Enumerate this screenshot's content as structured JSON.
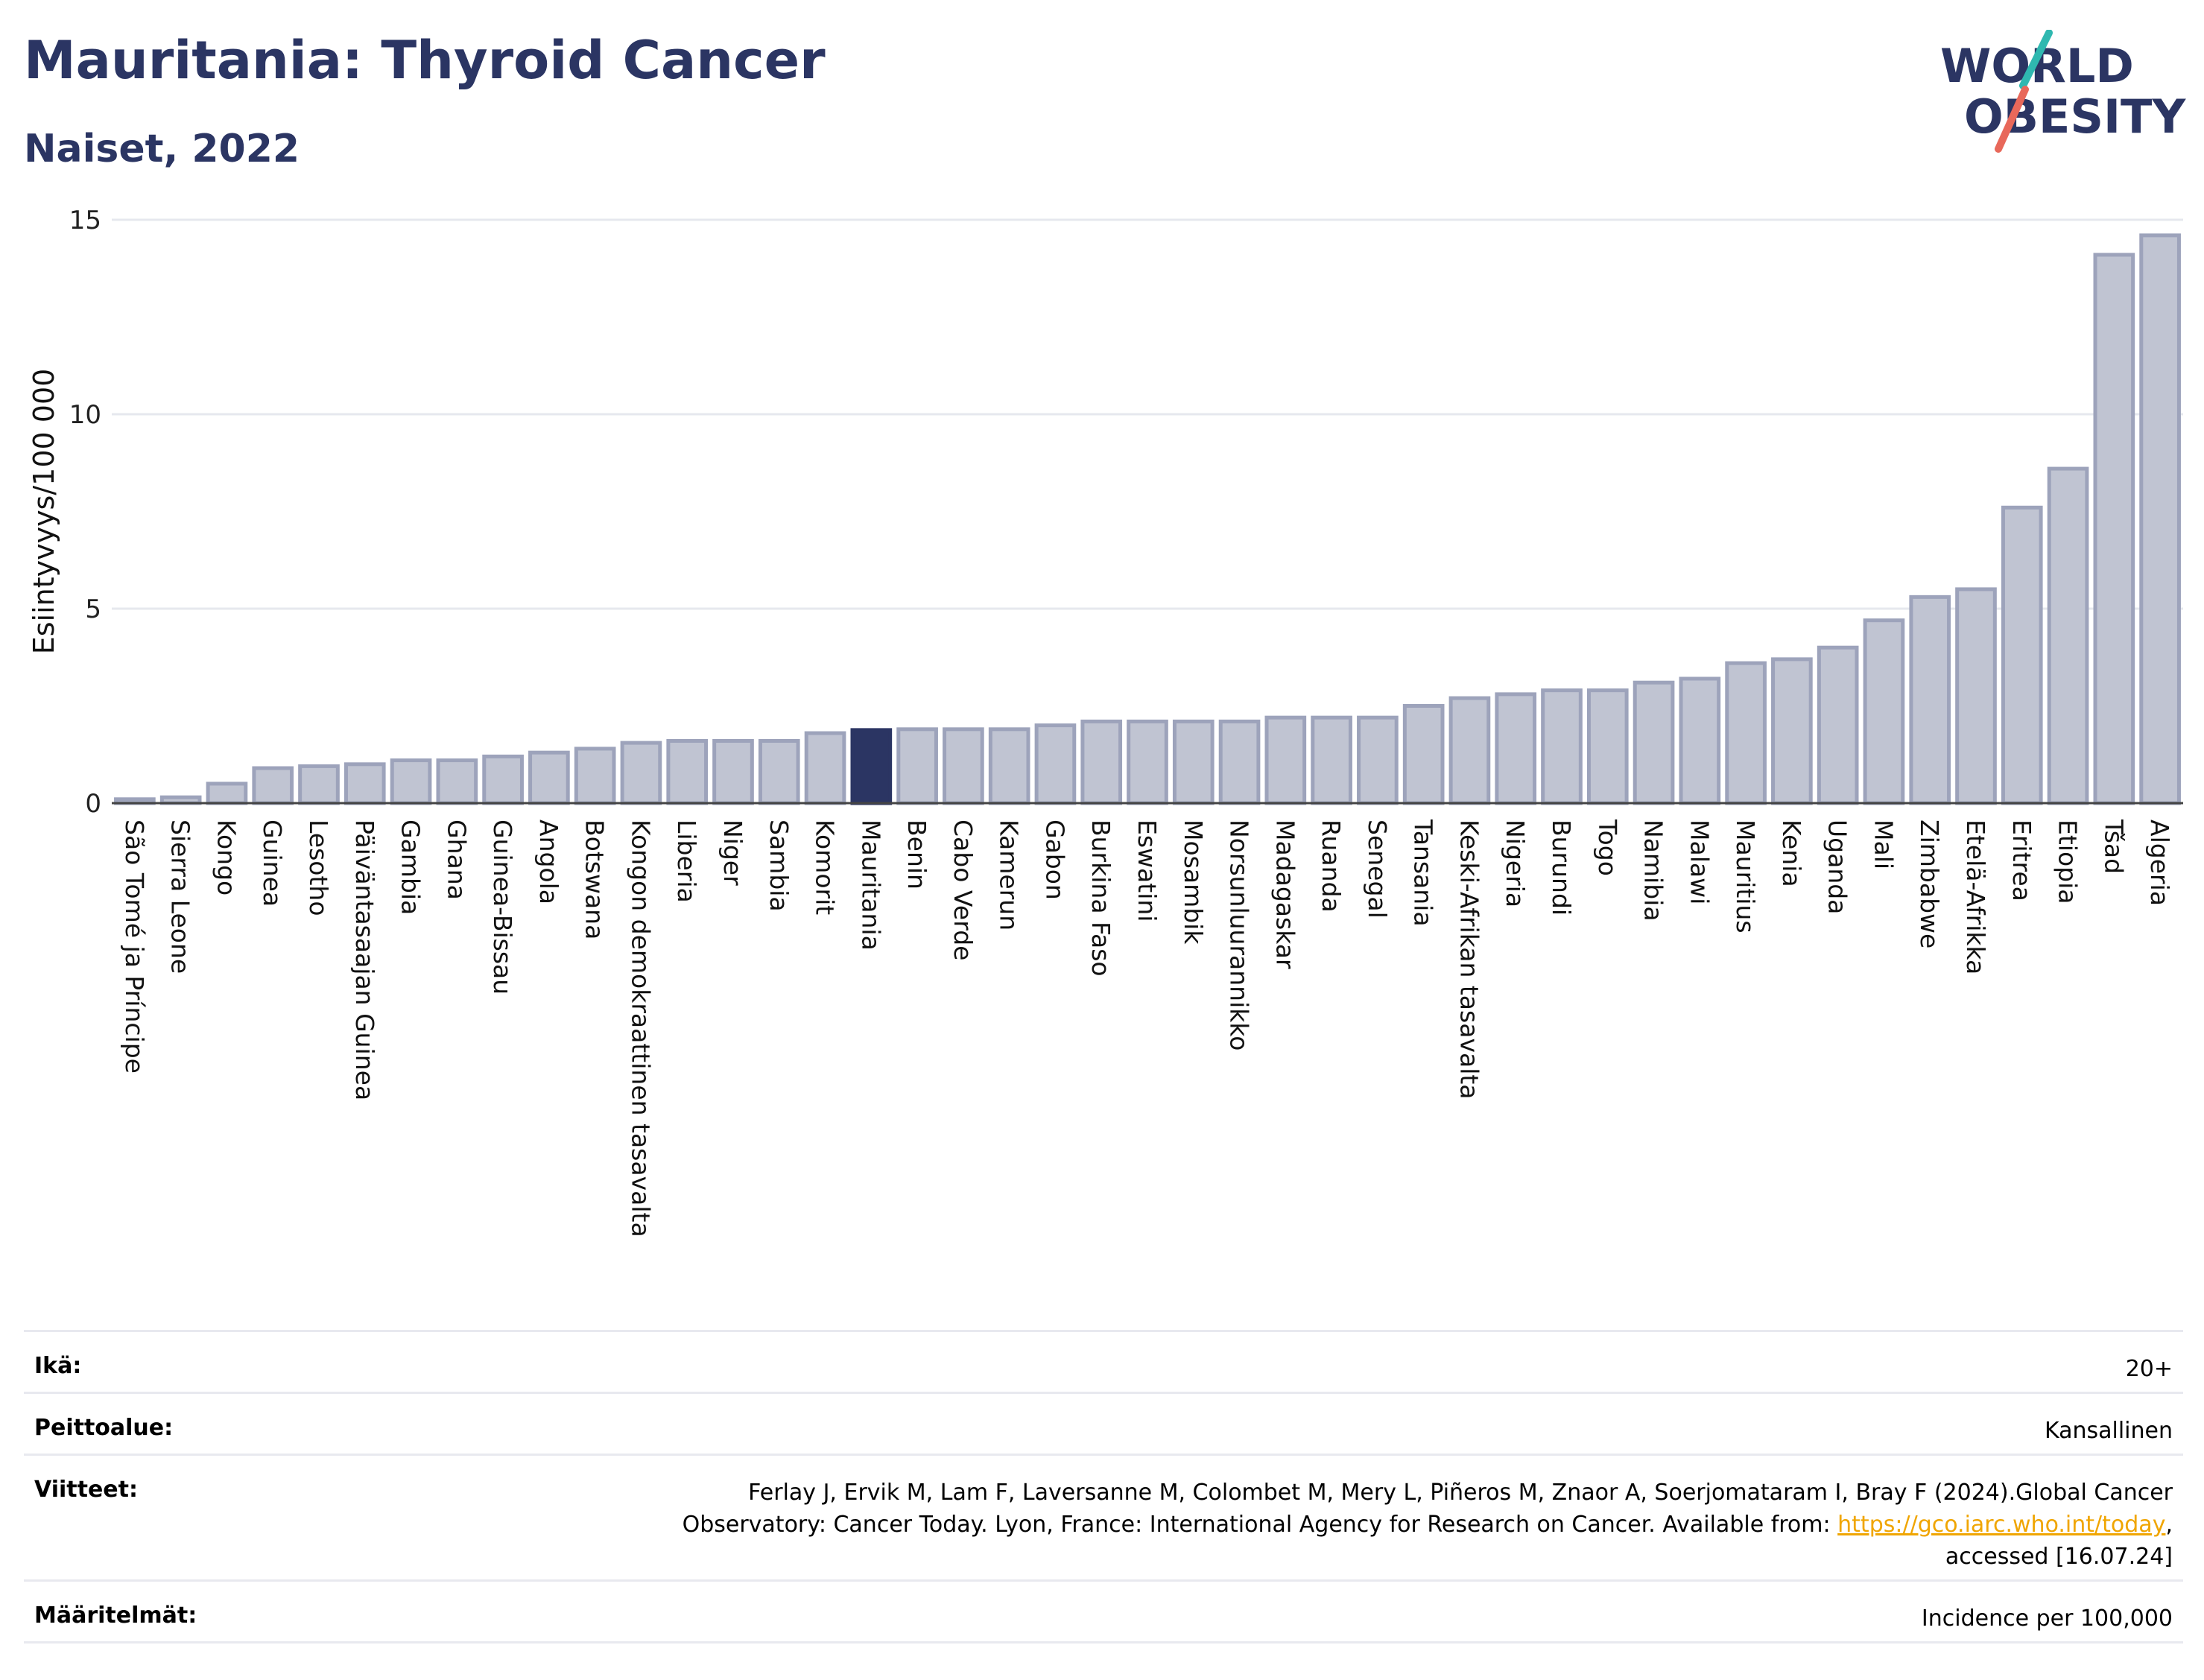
{
  "header": {
    "title": "Mauritania: Thyroid Cancer",
    "subtitle": "Naiset, 2022"
  },
  "logo": {
    "line1": "WORLD",
    "line2": "OBESITY",
    "accent_teal": "#2fb8b0",
    "accent_red": "#e8685a",
    "text_color": "#2b3563"
  },
  "chart_data": {
    "type": "bar",
    "ylabel": "Esiintyvyys/100 000",
    "ylim": [
      0,
      15
    ],
    "yticks": [
      0,
      5,
      10,
      15
    ],
    "grid": true,
    "highlight": "Mauritania",
    "colors": {
      "bar": "#c0c4d2",
      "bar_border": "#9da3bb",
      "highlight": "#2b3563",
      "grid": "#e6e8ee"
    },
    "categories": [
      "São Tomé ja Príncipe",
      "Sierra Leone",
      "Kongo",
      "Guinea",
      "Lesotho",
      "Päiväntasaajan Guinea",
      "Gambia",
      "Ghana",
      "Guinea-Bissau",
      "Angola",
      "Botswana",
      "Kongon demokraattinen tasavalta",
      "Liberia",
      "Niger",
      "Sambia",
      "Komorit",
      "Mauritania",
      "Benin",
      "Cabo Verde",
      "Kamerun",
      "Gabon",
      "Burkina Faso",
      "Eswatini",
      "Mosambik",
      "Norsunluurannikko",
      "Madagaskar",
      "Ruanda",
      "Senegal",
      "Tansania",
      "Keski-Afrikan tasavalta",
      "Nigeria",
      "Burundi",
      "Togo",
      "Namibia",
      "Malawi",
      "Mauritius",
      "Kenia",
      "Uganda",
      "Mali",
      "Zimbabwe",
      "Etelä-Afrikka",
      "Eritrea",
      "Etiopia",
      "Tšad",
      "Algeria"
    ],
    "values": [
      0.1,
      0.15,
      0.5,
      0.9,
      0.95,
      1.0,
      1.1,
      1.1,
      1.2,
      1.3,
      1.4,
      1.55,
      1.6,
      1.6,
      1.6,
      1.8,
      1.88,
      1.9,
      1.9,
      1.9,
      2.0,
      2.1,
      2.1,
      2.1,
      2.1,
      2.2,
      2.2,
      2.2,
      2.5,
      2.7,
      2.8,
      2.9,
      2.9,
      3.1,
      3.2,
      3.6,
      3.7,
      4.0,
      4.7,
      5.3,
      5.5,
      7.6,
      8.6,
      14.1,
      14.6
    ]
  },
  "info": {
    "age_label": "Ikä:",
    "age_value": "20+",
    "coverage_label": "Peittoalue:",
    "coverage_value": "Kansallinen",
    "refs_label": "Viitteet:",
    "refs_line1": "Ferlay J, Ervik M, Lam F, Laversanne M, Colombet M, Mery L, Piñeros M, Znaor A, Soerjomataram I, Bray F (2024).Global Cancer",
    "refs_line2": "Observatory: Cancer Today. Lyon, France: International Agency for Research on Cancer. Available from: ",
    "refs_link": "https://gco.iarc.who.int/today",
    "refs_after_link": ",",
    "refs_line3": "accessed [16.07.24]",
    "defs_label": "Määritelmät:",
    "defs_value": "Incidence per 100,000"
  }
}
